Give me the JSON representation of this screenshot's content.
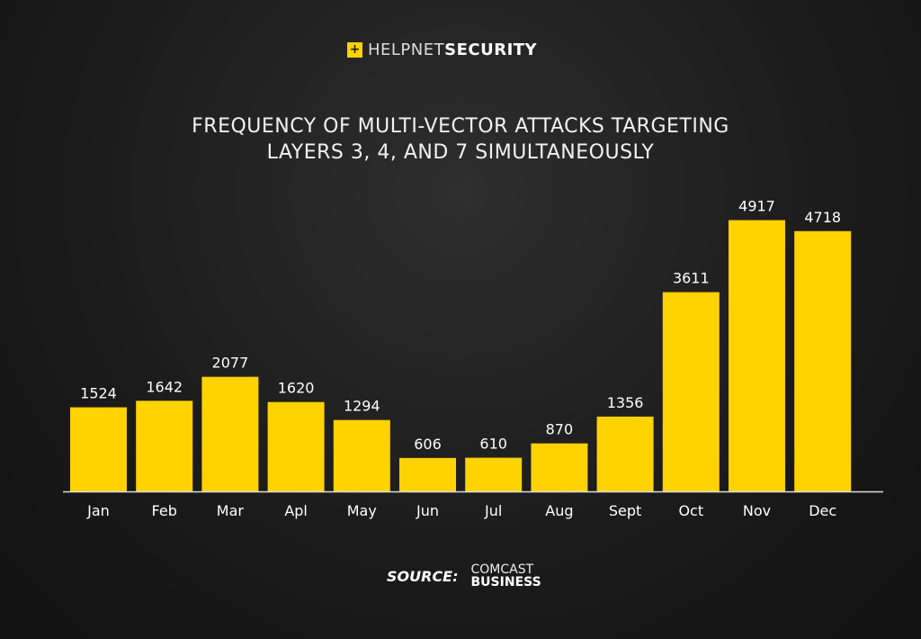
{
  "logo": {
    "mark": "+",
    "text_light": "HELPNET",
    "text_bold": "SECURITY"
  },
  "chart_data": {
    "type": "bar",
    "title": "FREQUENCY OF MULTI-VECTOR ATTACKS TARGETING LAYERS 3, 4, AND 7 SIMULTANEOUSLY",
    "title_lines": [
      "FREQUENCY OF MULTI-VECTOR ATTACKS TARGETING",
      "LAYERS 3, 4, AND 7 SIMULTANEOUSLY"
    ],
    "categories": [
      "Jan",
      "Feb",
      "Mar",
      "Apl",
      "May",
      "Jun",
      "Jul",
      "Aug",
      "Sept",
      "Oct",
      "Nov",
      "Dec"
    ],
    "values": [
      1524,
      1642,
      2077,
      1620,
      1294,
      606,
      610,
      870,
      1356,
      3611,
      4917,
      4718
    ],
    "xlabel": "",
    "ylabel": "",
    "ylim": [
      0,
      5000
    ],
    "grid": false,
    "bar_color": "#ffd200"
  },
  "source": {
    "label": "SOURCE:",
    "line1": "COMCAST",
    "line2": "BUSINESS"
  }
}
